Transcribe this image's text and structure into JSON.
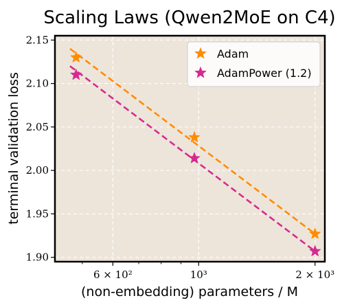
{
  "chart_data": {
    "type": "scatter",
    "title": "Scaling Laws (Qwen2MoE on C4)",
    "xlabel": "(non-embedding) parameters / M",
    "ylabel": "terminal validation loss",
    "xscale": "log",
    "xlim": [
      425,
      2120
    ],
    "ylim": [
      1.895,
      2.155
    ],
    "x_ticks": [
      {
        "value": 600,
        "label": "6 × 10²"
      },
      {
        "value": 1000,
        "label": "10³"
      },
      {
        "value": 2000,
        "label": "2 × 10³"
      }
    ],
    "y_ticks": [
      {
        "value": 1.9,
        "label": "1.90"
      },
      {
        "value": 1.95,
        "label": "1.95"
      },
      {
        "value": 2.0,
        "label": "2.00"
      },
      {
        "value": 2.05,
        "label": "2.05"
      },
      {
        "value": 2.1,
        "label": "2.10"
      },
      {
        "value": 2.15,
        "label": "2.15"
      }
    ],
    "grid": true,
    "legend_position": "top-right",
    "colors": {
      "background": "#ede5da",
      "grid": "#ffffff"
    },
    "series": [
      {
        "name": "Adam",
        "color": "#ff8c00",
        "marker": "star",
        "x": [
          482,
          975,
          2000
        ],
        "y": [
          2.13,
          2.038,
          1.927
        ],
        "fit_x": [
          465,
          2000
        ],
        "fit_y": [
          2.14,
          1.927
        ]
      },
      {
        "name": "AdamPower (1.2)",
        "color": "#d62a8f",
        "marker": "star",
        "x": [
          482,
          975,
          2000
        ],
        "y": [
          2.11,
          2.014,
          1.907
        ],
        "fit_x": [
          465,
          2000
        ],
        "fit_y": [
          2.12,
          1.907
        ]
      }
    ]
  }
}
